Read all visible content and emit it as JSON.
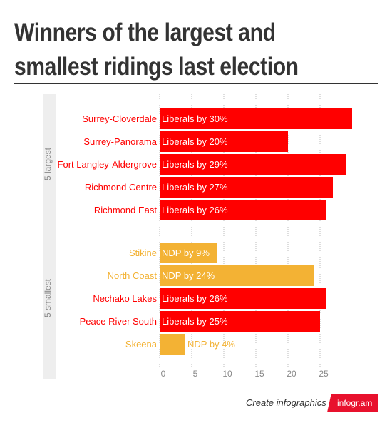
{
  "title": "Winners of the largest and smallest ridings last election",
  "footer": {
    "text": "Create infographics",
    "logo": "infogr.am"
  },
  "colors": {
    "liberal": "#ff0000",
    "ndp": "#f3b234",
    "group_band": "#eeeeee",
    "grid": "#bbbbbb",
    "tick": "#888888"
  },
  "chart_data": {
    "type": "bar",
    "orientation": "horizontal",
    "xlim": [
      0,
      30
    ],
    "ticks": [
      "0",
      "5",
      "10",
      "15",
      "20",
      "25"
    ],
    "grid": true,
    "groups": [
      {
        "label": "5 largest",
        "bars": [
          {
            "riding": "Surrey-Cloverdale",
            "value": 30,
            "label": "Liberals by 30%",
            "party": "liberal"
          },
          {
            "riding": "Surrey-Panorama",
            "value": 20,
            "label": "Liberals by 20%",
            "party": "liberal"
          },
          {
            "riding": "Fort Langley-Aldergrove",
            "value": 29,
            "label": "Liberals by 29%",
            "party": "liberal"
          },
          {
            "riding": "Richmond Centre",
            "value": 27,
            "label": "Liberals by 27%",
            "party": "liberal"
          },
          {
            "riding": "Richmond East",
            "value": 26,
            "label": "Liberals by 26%",
            "party": "liberal"
          }
        ]
      },
      {
        "label": "5 smallest",
        "bars": [
          {
            "riding": "Stikine",
            "value": 9,
            "label": "NDP by 9%",
            "party": "ndp"
          },
          {
            "riding": "North Coast",
            "value": 24,
            "label": "NDP by 24%",
            "party": "ndp"
          },
          {
            "riding": "Nechako Lakes",
            "value": 26,
            "label": "Liberals by 26%",
            "party": "liberal"
          },
          {
            "riding": "Peace River South",
            "value": 25,
            "label": "Liberals by 25%",
            "party": "liberal"
          },
          {
            "riding": "Skeena",
            "value": 4,
            "label": "NDP by 4%",
            "party": "ndp"
          }
        ]
      }
    ]
  }
}
